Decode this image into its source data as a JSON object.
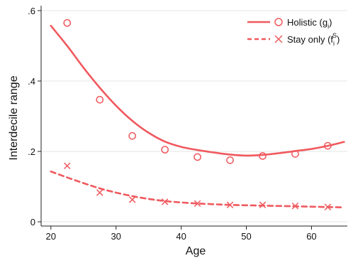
{
  "chart_data": {
    "type": "scatter",
    "xlabel": "Age",
    "ylabel": "Interdecile range",
    "xlim": [
      18.5,
      65.5
    ],
    "ylim": [
      -0.012,
      0.61
    ],
    "x_ticks": [
      20,
      30,
      40,
      50,
      60
    ],
    "x_tick_labels": [
      "20",
      "30",
      "40",
      "50",
      "60"
    ],
    "y_ticks": [
      0,
      0.2,
      0.4,
      0.6
    ],
    "y_tick_labels": [
      "0",
      ".2",
      ".4",
      ".6"
    ],
    "grid": true,
    "legend_position": "top-right",
    "color": "#f0595e",
    "series": [
      {
        "name": "Holistic (g",
        "name_sub": "i",
        "name_sup": "",
        "name_end": ")",
        "marker": "circle",
        "line": "solid",
        "points_x": [
          22.5,
          27.5,
          32.5,
          37.5,
          42.5,
          47.5,
          52.5,
          57.5,
          62.5
        ],
        "points_y": [
          0.565,
          0.347,
          0.244,
          0.205,
          0.184,
          0.175,
          0.187,
          0.193,
          0.216
        ],
        "fit_x": [
          20,
          22.5,
          25,
          27.5,
          30,
          32.5,
          35,
          37.5,
          40,
          42.5,
          45,
          47.5,
          50,
          52.5,
          55,
          57.5,
          60,
          62.5,
          65
        ],
        "fit_y": [
          0.557,
          0.5,
          0.438,
          0.381,
          0.33,
          0.287,
          0.253,
          0.228,
          0.213,
          0.204,
          0.197,
          0.191,
          0.188,
          0.19,
          0.195,
          0.201,
          0.207,
          0.216,
          0.227
        ]
      },
      {
        "name": "Stay only (f",
        "name_sub": "i",
        "name_sup": "S",
        "name_end": ")",
        "marker": "x",
        "line": "dashed",
        "points_x": [
          22.5,
          27.5,
          32.5,
          37.5,
          42.5,
          47.5,
          52.5,
          57.5,
          62.5
        ],
        "points_y": [
          0.159,
          0.083,
          0.063,
          0.057,
          0.052,
          0.048,
          0.048,
          0.045,
          0.042
        ],
        "fit_x": [
          20,
          22.5,
          25,
          27.5,
          30,
          32.5,
          35,
          37.5,
          40,
          42.5,
          45,
          47.5,
          50,
          52.5,
          55,
          57.5,
          60,
          62.5,
          65
        ],
        "fit_y": [
          0.143,
          0.126,
          0.11,
          0.095,
          0.083,
          0.073,
          0.065,
          0.059,
          0.055,
          0.052,
          0.05,
          0.048,
          0.047,
          0.046,
          0.045,
          0.044,
          0.043,
          0.042,
          0.041
        ]
      }
    ]
  }
}
